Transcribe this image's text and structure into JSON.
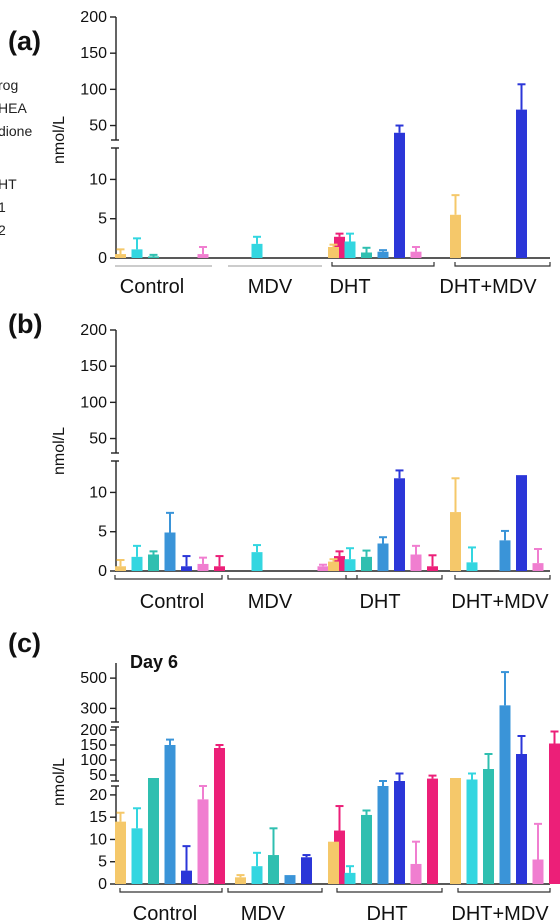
{
  "figure": {
    "legend_fragments": [
      "rog",
      "HEA",
      "dione",
      "HT",
      "1",
      "2"
    ],
    "palette": [
      "#f5c86a",
      "#33d6e0",
      "#2fbfb0",
      "#3a94d8",
      "#2b36d8",
      "#f07ed0",
      "#ec1f78"
    ]
  },
  "chart_data": [
    {
      "type": "bar",
      "panel": "(a)",
      "ylabel": "nmol/L",
      "yticks_lower": [
        "0",
        "5",
        "10"
      ],
      "yticks_upper": [
        "50",
        "100",
        "150",
        "200"
      ],
      "categories": [
        "Control",
        "MDV",
        "DHT",
        "DHT+MDV"
      ],
      "bars": [
        {
          "group": 0,
          "series": 0,
          "value": 0.5,
          "err": 0.6
        },
        {
          "group": 0,
          "series": 1,
          "value": 1.1,
          "err": 1.4
        },
        {
          "group": 0,
          "series": 2,
          "value": 0.2,
          "err": 0.2
        },
        {
          "group": 0,
          "series": 5,
          "value": 0.5,
          "err": 0.9
        },
        {
          "group": 1,
          "series": 1,
          "value": 1.8,
          "err": 0.9
        },
        {
          "group": 1,
          "series": 6,
          "value": 2.7,
          "err": 0.4
        },
        {
          "group": 2,
          "series": 0,
          "value": 1.4,
          "err": 0.3
        },
        {
          "group": 2,
          "series": 1,
          "value": 2.1,
          "err": 1.0
        },
        {
          "group": 2,
          "series": 2,
          "value": 0.7,
          "err": 0.6
        },
        {
          "group": 2,
          "series": 3,
          "value": 0.8,
          "err": 0.2
        },
        {
          "group": 2,
          "series": 4,
          "value": 40,
          "err": 10
        },
        {
          "group": 2,
          "series": 5,
          "value": 0.8,
          "err": 0.6
        },
        {
          "group": 3,
          "series": 0,
          "value": 5.5,
          "err": 2.5
        },
        {
          "group": 3,
          "series": 4,
          "value": 72,
          "err": 35
        }
      ]
    },
    {
      "type": "bar",
      "panel": "(b)",
      "ylabel": "nmol/L",
      "yticks_lower": [
        "0",
        "5",
        "10"
      ],
      "yticks_upper": [
        "50",
        "100",
        "150",
        "200"
      ],
      "categories": [
        "Control",
        "MDV",
        "DHT",
        "DHT+MDV"
      ],
      "bars": [
        {
          "group": 0,
          "series": 0,
          "value": 0.6,
          "err": 0.8
        },
        {
          "group": 0,
          "series": 1,
          "value": 1.8,
          "err": 1.4
        },
        {
          "group": 0,
          "series": 2,
          "value": 2.1,
          "err": 0.4
        },
        {
          "group": 0,
          "series": 3,
          "value": 4.9,
          "err": 2.5
        },
        {
          "group": 0,
          "series": 4,
          "value": 0.6,
          "err": 1.3
        },
        {
          "group": 0,
          "series": 5,
          "value": 0.9,
          "err": 0.8
        },
        {
          "group": 0,
          "series": 6,
          "value": 0.6,
          "err": 1.3
        },
        {
          "group": 1,
          "series": 1,
          "value": 2.4,
          "err": 0.9
        },
        {
          "group": 1,
          "series": 5,
          "value": 0.6,
          "err": 0.2
        },
        {
          "group": 1,
          "series": 6,
          "value": 1.9,
          "err": 0.6
        },
        {
          "group": 2,
          "series": 0,
          "value": 1.2,
          "err": 0.3
        },
        {
          "group": 2,
          "series": 1,
          "value": 1.5,
          "err": 1.4
        },
        {
          "group": 2,
          "series": 2,
          "value": 1.8,
          "err": 0.8
        },
        {
          "group": 2,
          "series": 3,
          "value": 3.5,
          "err": 0.8
        },
        {
          "group": 2,
          "series": 4,
          "value": 11.8,
          "err": 1.0
        },
        {
          "group": 2,
          "series": 5,
          "value": 2.1,
          "err": 1.1
        },
        {
          "group": 2,
          "series": 6,
          "value": 0.6,
          "err": 1.4
        },
        {
          "group": 3,
          "series": 0,
          "value": 7.5,
          "err": 4.3
        },
        {
          "group": 3,
          "series": 1,
          "value": 1.1,
          "err": 1.9
        },
        {
          "group": 3,
          "series": 3,
          "value": 3.9,
          "err": 1.2
        },
        {
          "group": 3,
          "series": 4,
          "value": 12.2,
          "err": 0
        },
        {
          "group": 3,
          "series": 5,
          "value": 1.0,
          "err": 1.8
        }
      ]
    },
    {
      "type": "bar",
      "panel": "(c)",
      "annotation": "Day 6",
      "ylabel": "nmol/L",
      "yticks_lower": [
        "0",
        "5",
        "10",
        "15",
        "20"
      ],
      "yticks_mid": [
        "50",
        "100",
        "150",
        "200"
      ],
      "yticks_upper": [
        "300",
        "500"
      ],
      "categories": [
        "Control",
        "MDV",
        "DHT",
        "DHT+MDV"
      ],
      "bars": [
        {
          "group": 0,
          "series": 0,
          "value": 14,
          "err": 2
        },
        {
          "group": 0,
          "series": 1,
          "value": 12.5,
          "err": 4.5
        },
        {
          "group": 0,
          "series": 2,
          "value": 40,
          "err": 0
        },
        {
          "group": 0,
          "series": 3,
          "value": 150,
          "err": 18
        },
        {
          "group": 0,
          "series": 4,
          "value": 3,
          "err": 5.5
        },
        {
          "group": 0,
          "series": 5,
          "value": 19,
          "err": 3
        },
        {
          "group": 0,
          "series": 6,
          "value": 140,
          "err": 10
        },
        {
          "group": 1,
          "series": 0,
          "value": 1.5,
          "err": 0.5
        },
        {
          "group": 1,
          "series": 1,
          "value": 4,
          "err": 3
        },
        {
          "group": 1,
          "series": 2,
          "value": 6.5,
          "err": 6
        },
        {
          "group": 1,
          "series": 3,
          "value": 2,
          "err": 0
        },
        {
          "group": 1,
          "series": 4,
          "value": 6,
          "err": 0.5
        },
        {
          "group": 1,
          "series": 6,
          "value": 12,
          "err": 5.5
        },
        {
          "group": 2,
          "series": 0,
          "value": 9.5,
          "err": 0
        },
        {
          "group": 2,
          "series": 1,
          "value": 2.5,
          "err": 1.5
        },
        {
          "group": 2,
          "series": 2,
          "value": 15.5,
          "err": 1
        },
        {
          "group": 2,
          "series": 3,
          "value": 25,
          "err": 5
        },
        {
          "group": 2,
          "series": 4,
          "value": 30,
          "err": 25
        },
        {
          "group": 2,
          "series": 5,
          "value": 4.5,
          "err": 5
        },
        {
          "group": 2,
          "series": 6,
          "value": 38,
          "err": 10
        },
        {
          "group": 3,
          "series": 0,
          "value": 40,
          "err": 0
        },
        {
          "group": 3,
          "series": 1,
          "value": 35,
          "err": 20
        },
        {
          "group": 3,
          "series": 2,
          "value": 70,
          "err": 50
        },
        {
          "group": 3,
          "series": 3,
          "value": 320,
          "err": 220
        },
        {
          "group": 3,
          "series": 4,
          "value": 120,
          "err": 60
        },
        {
          "group": 3,
          "series": 5,
          "value": 5.5,
          "err": 8
        },
        {
          "group": 3,
          "series": 6,
          "value": 155,
          "err": 40
        }
      ]
    }
  ]
}
